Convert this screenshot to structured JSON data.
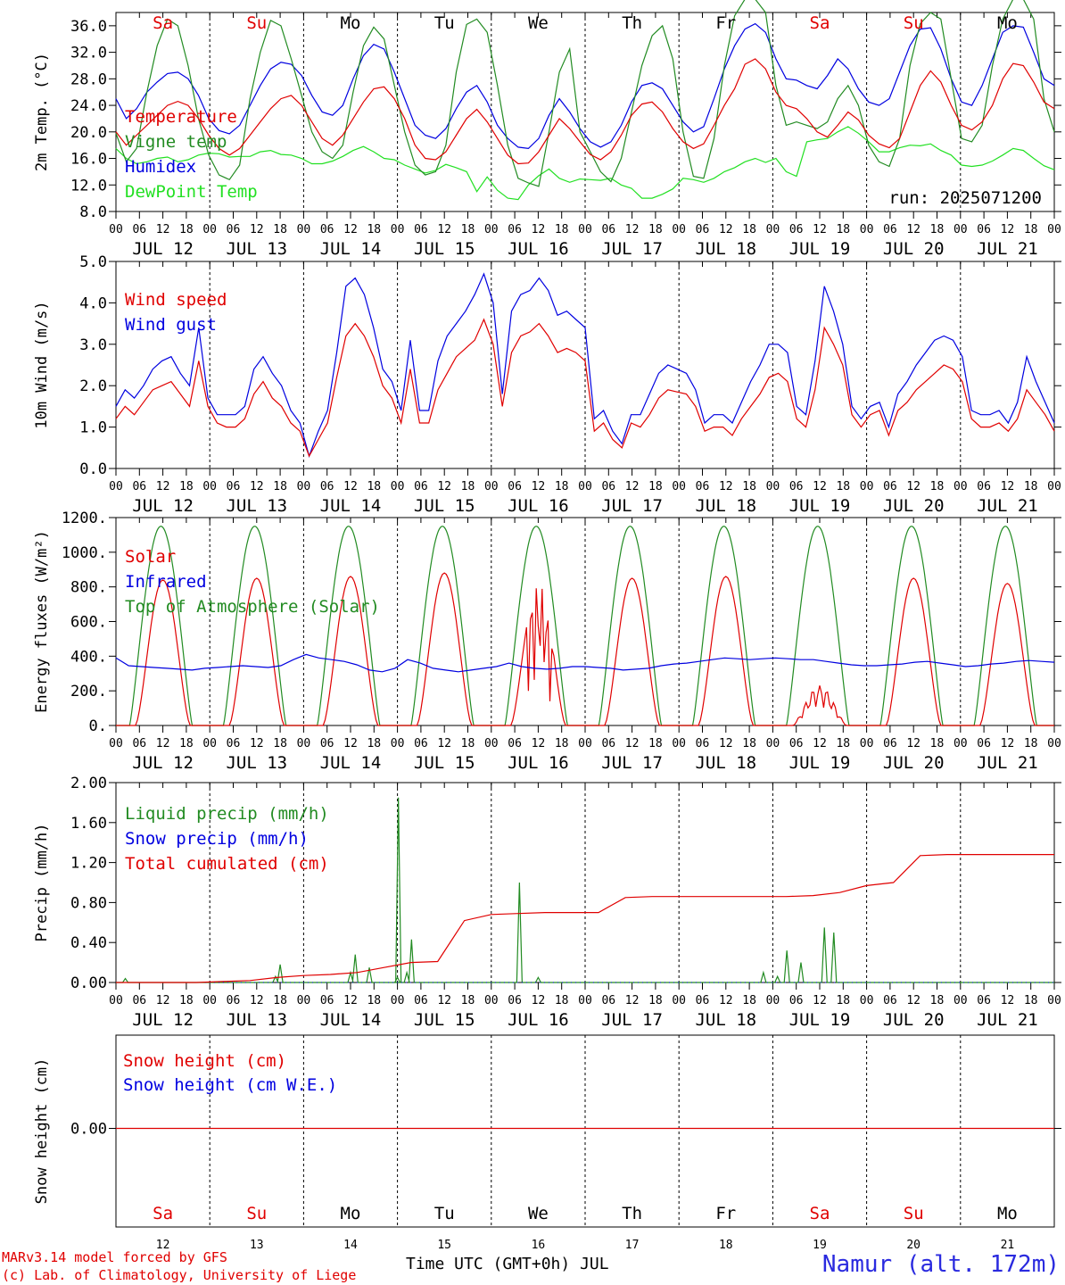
{
  "run_label": "run: 2025071200",
  "month": "JUL",
  "day_numbers": [
    "12",
    "13",
    "14",
    "15",
    "16",
    "17",
    "18",
    "19",
    "20",
    "21"
  ],
  "day_labels": [
    "JUL 12",
    "JUL 13",
    "JUL 14",
    "JUL 15",
    "JUL 16",
    "JUL 17",
    "JUL 18",
    "JUL 19",
    "JUL 20",
    "JUL 21"
  ],
  "weekdays": [
    {
      "name": "Sa",
      "color": "#e00000"
    },
    {
      "name": "Su",
      "color": "#e00000"
    },
    {
      "name": "Mo",
      "color": "#000000"
    },
    {
      "name": "Tu",
      "color": "#000000"
    },
    {
      "name": "We",
      "color": "#000000"
    },
    {
      "name": "Th",
      "color": "#000000"
    },
    {
      "name": "Fr",
      "color": "#000000"
    },
    {
      "name": "Sa",
      "color": "#e00000"
    },
    {
      "name": "Su",
      "color": "#e00000"
    },
    {
      "name": "Mo",
      "color": "#000000"
    }
  ],
  "hour_ticks": [
    "00",
    "06",
    "12",
    "18"
  ],
  "footer": {
    "model_line": "MARv3.14 model forced by GFS",
    "copyright_line": "(c) Lab. of Climatology, University of Liege",
    "axis_title": "Time UTC (GMT+0h) JUL",
    "station": "Namur (alt. 172m)"
  },
  "colors": {
    "red": "#e00000",
    "green": "#228b22",
    "blue": "#0000e0",
    "lightgreen": "#22e022"
  },
  "chart_data": [
    {
      "type": "line",
      "ylabel": "2m Temp. (°C)",
      "ylim": [
        8,
        38
      ],
      "yticks": [
        "8.0",
        "12.0",
        "16.0",
        "20.0",
        "24.0",
        "28.0",
        "32.0",
        "36.0"
      ],
      "series": [
        {
          "name": "Temperature",
          "color": "#e00000",
          "values": [
            20,
            18,
            19.5,
            21,
            22.5,
            24,
            24.6,
            24,
            22,
            19.5,
            17.5,
            16.5,
            17.5,
            19.5,
            21.5,
            23.5,
            25,
            25.5,
            24,
            21.5,
            19,
            18,
            19.5,
            22,
            24.5,
            26.5,
            26.8,
            25,
            22,
            18,
            16,
            15.8,
            17,
            19.5,
            22,
            23.4,
            21.5,
            19,
            16.5,
            15.2,
            15.3,
            17,
            19.5,
            22,
            20.5,
            18.5,
            16.6,
            15.8,
            17,
            19.5,
            22.5,
            24.2,
            24.5,
            23,
            20.5,
            18.5,
            17.5,
            18.2,
            21,
            24,
            26.5,
            30.2,
            31,
            29.5,
            26,
            24,
            23.5,
            22,
            20,
            19.2,
            21,
            23,
            21.8,
            19.5,
            18.2,
            17.6,
            19,
            23,
            27,
            29.2,
            27.5,
            24,
            21,
            20.3,
            21.5,
            24,
            28,
            30.3,
            30,
            27.5,
            24.5,
            23.5
          ]
        },
        {
          "name": "Vigne temp",
          "color": "#228b22",
          "values": [
            19.8,
            15.5,
            17.5,
            26,
            33,
            37,
            36,
            30,
            22,
            16.5,
            13.5,
            12.8,
            15,
            25,
            32,
            36.8,
            36,
            31,
            25.5,
            20,
            17,
            16,
            18,
            26,
            33,
            35.8,
            34,
            27,
            20,
            15,
            13.5,
            14,
            18,
            29,
            36.2,
            37,
            35,
            27,
            18,
            13,
            12.3,
            11.8,
            20,
            29,
            32.5,
            20,
            17,
            14,
            12.5,
            16,
            23,
            30,
            34.5,
            36,
            31,
            20,
            13.3,
            13,
            19,
            30,
            37.5,
            40,
            40,
            38,
            27,
            21,
            21.5,
            21,
            20.5,
            21.5,
            25,
            27,
            24,
            18,
            15.5,
            14.8,
            19,
            30,
            36.3,
            38,
            37,
            28,
            19,
            18.5,
            21,
            30,
            37,
            40,
            40,
            37,
            25,
            20
          ]
        },
        {
          "name": "Humidex",
          "color": "#0000e0",
          "values": [
            25,
            22,
            23.5,
            26,
            27.5,
            28.8,
            29,
            28,
            25.5,
            22,
            20.2,
            19.7,
            21,
            24,
            27,
            29.5,
            30.5,
            30.2,
            28.5,
            25.5,
            23,
            22.5,
            24,
            28,
            31.5,
            33.2,
            32.5,
            29,
            25,
            21,
            19.5,
            19,
            20.5,
            23.5,
            26,
            27,
            24.5,
            21,
            19,
            17.7,
            17.5,
            19,
            22.5,
            25,
            23,
            20.5,
            18.5,
            17.7,
            18.5,
            21,
            24.5,
            27,
            27.4,
            26.5,
            24,
            21.5,
            20,
            20.8,
            25,
            29.5,
            33,
            35.5,
            36.3,
            35,
            31,
            28,
            27.8,
            27,
            26.5,
            28.5,
            31,
            29.5,
            26.5,
            24.5,
            24,
            25,
            29,
            33,
            35.5,
            35.7,
            32.5,
            28,
            24.5,
            24,
            27,
            31,
            35,
            36,
            35.8,
            32,
            28,
            27
          ]
        },
        {
          "name": "DewPoint Temp",
          "color": "#22e022",
          "values": [
            17.5,
            16,
            15.2,
            15.5,
            16,
            16.2,
            15.5,
            15.8,
            16.5,
            16.8,
            16.7,
            16.2,
            16.3,
            16.3,
            17,
            17.2,
            16.6,
            16.5,
            16,
            15.2,
            15.2,
            15.6,
            16.3,
            17.2,
            17.8,
            17,
            16,
            15.8,
            15,
            14.4,
            13.8,
            14.2,
            15.1,
            14.6,
            14,
            11,
            13.2,
            11.2,
            10,
            9.8,
            12,
            13.4,
            14.4,
            13,
            12.4,
            12.9,
            12.8,
            12.7,
            13,
            12,
            11.5,
            10,
            10,
            10.6,
            11.4,
            13,
            12.8,
            12.4,
            13,
            14,
            14.6,
            15.5,
            16,
            15.4,
            16,
            14,
            13.3,
            18.5,
            18.8,
            19,
            20,
            20.8,
            19.8,
            18.5,
            17,
            17,
            17.6,
            18,
            17.9,
            18.2,
            17.2,
            16.5,
            15,
            14.8,
            15,
            15.6,
            16.5,
            17.5,
            17.2,
            16,
            14.9,
            14.3
          ]
        }
      ]
    },
    {
      "type": "line",
      "ylabel": "10m Wind (m/s)",
      "ylim": [
        0,
        5
      ],
      "yticks": [
        "0.0",
        "1.0",
        "2.0",
        "3.0",
        "4.0",
        "5.0"
      ],
      "series": [
        {
          "name": "Wind speed",
          "color": "#e00000",
          "values": [
            1.2,
            1.5,
            1.3,
            1.6,
            1.9,
            2.0,
            2.1,
            1.8,
            1.5,
            2.6,
            1.5,
            1.1,
            1.0,
            1.0,
            1.2,
            1.8,
            2.1,
            1.7,
            1.5,
            1.1,
            0.9,
            0.3,
            0.7,
            1.1,
            2.2,
            3.2,
            3.5,
            3.2,
            2.7,
            2.0,
            1.7,
            1.1,
            2.4,
            1.1,
            1.1,
            1.9,
            2.3,
            2.7,
            2.9,
            3.1,
            3.6,
            3.0,
            1.5,
            2.8,
            3.2,
            3.3,
            3.5,
            3.2,
            2.8,
            2.9,
            2.8,
            2.6,
            0.9,
            1.1,
            0.7,
            0.5,
            1.1,
            1.0,
            1.3,
            1.7,
            1.9,
            1.85,
            1.8,
            1.5,
            0.9,
            1.0,
            1.0,
            0.8,
            1.2,
            1.5,
            1.8,
            2.2,
            2.3,
            2.1,
            1.2,
            1.0,
            1.9,
            3.4,
            3.0,
            2.5,
            1.3,
            1.0,
            1.3,
            1.4,
            0.8,
            1.4,
            1.6,
            1.9,
            2.1,
            2.3,
            2.5,
            2.4,
            2.1,
            1.2,
            1.0,
            1.0,
            1.1,
            0.9,
            1.2,
            1.9,
            1.6,
            1.3,
            0.9
          ]
        },
        {
          "name": "Wind gust",
          "color": "#0000e0",
          "values": [
            1.5,
            1.9,
            1.7,
            2.0,
            2.4,
            2.6,
            2.7,
            2.3,
            2.0,
            3.4,
            1.7,
            1.3,
            1.3,
            1.3,
            1.5,
            2.4,
            2.7,
            2.3,
            2.0,
            1.4,
            1.1,
            0.3,
            0.9,
            1.4,
            2.8,
            4.4,
            4.6,
            4.2,
            3.4,
            2.4,
            2.1,
            1.4,
            3.1,
            1.4,
            1.4,
            2.6,
            3.2,
            3.5,
            3.8,
            4.2,
            4.7,
            4.0,
            1.8,
            3.8,
            4.2,
            4.3,
            4.6,
            4.3,
            3.7,
            3.8,
            3.6,
            3.4,
            1.2,
            1.4,
            0.9,
            0.6,
            1.3,
            1.3,
            1.8,
            2.3,
            2.5,
            2.4,
            2.3,
            1.9,
            1.1,
            1.3,
            1.3,
            1.1,
            1.6,
            2.1,
            2.5,
            3.0,
            3.0,
            2.8,
            1.5,
            1.3,
            2.6,
            4.4,
            3.8,
            3.0,
            1.5,
            1.2,
            1.5,
            1.6,
            1.0,
            1.8,
            2.1,
            2.5,
            2.8,
            3.1,
            3.2,
            3.1,
            2.7,
            1.4,
            1.3,
            1.3,
            1.4,
            1.1,
            1.6,
            2.7,
            2.1,
            1.6,
            1.1
          ]
        }
      ]
    },
    {
      "type": "line",
      "ylabel": "Energy fluxes (W/m²)",
      "ylim": [
        0,
        1200
      ],
      "yticks": [
        "0.",
        "200.",
        "400.",
        "600.",
        "800.",
        "1000.",
        "1200."
      ],
      "series": [
        {
          "name": "Solar",
          "color": "#e00000",
          "daily_peaks": [
            840,
            850,
            860,
            880,
            820,
            850,
            860,
            230,
            850,
            820
          ]
        },
        {
          "name": "Infrared",
          "color": "#0000e0",
          "values": [
            390,
            345,
            340,
            335,
            330,
            325,
            320,
            330,
            335,
            340,
            345,
            340,
            335,
            345,
            380,
            410,
            390,
            380,
            370,
            350,
            320,
            310,
            330,
            380,
            360,
            330,
            320,
            310,
            320,
            330,
            340,
            360,
            340,
            330,
            325,
            330,
            340,
            340,
            335,
            330,
            320,
            325,
            330,
            345,
            355,
            360,
            370,
            380,
            390,
            385,
            380,
            385,
            390,
            385,
            380,
            380,
            370,
            360,
            350,
            345,
            345,
            350,
            355,
            365,
            370,
            360,
            350,
            340,
            345,
            355,
            360,
            370,
            375,
            370,
            365
          ]
        },
        {
          "name": "Top of Atmosphere (Solar)",
          "color": "#228b22",
          "daily_peak": 1150
        }
      ]
    },
    {
      "type": "line",
      "ylabel": "Precip (mm/h)",
      "ylim": [
        0,
        2
      ],
      "yticks": [
        "0.00",
        "0.40",
        "0.80",
        "1.20",
        "1.60",
        "2.00"
      ],
      "series": [
        {
          "name": "Liquid precip (mm/h)",
          "color": "#228b22"
        },
        {
          "name": "Snow precip (mm/h)",
          "color": "#0000e0"
        },
        {
          "name": "Total cumulated (cm)",
          "color": "#e00000",
          "values": [
            0,
            0,
            0,
            0,
            0.01,
            0.02,
            0.05,
            0.07,
            0.08,
            0.1,
            0.15,
            0.2,
            0.21,
            0.62,
            0.68,
            0.69,
            0.7,
            0.7,
            0.7,
            0.85,
            0.86,
            0.86,
            0.86,
            0.86,
            0.86,
            0.86,
            0.87,
            0.9,
            0.97,
            1.0,
            1.27,
            1.28,
            1.28,
            1.28,
            1.28,
            1.28
          ]
        }
      ]
    },
    {
      "type": "line",
      "ylabel": "Snow height (cm)",
      "yticks": [
        "0.00"
      ],
      "series": [
        {
          "name": "Snow height (cm)",
          "color": "#e00000",
          "values": [
            0,
            0
          ]
        },
        {
          "name": "Snow height (cm W.E.)",
          "color": "#0000e0",
          "values": [
            0,
            0
          ]
        }
      ]
    }
  ]
}
